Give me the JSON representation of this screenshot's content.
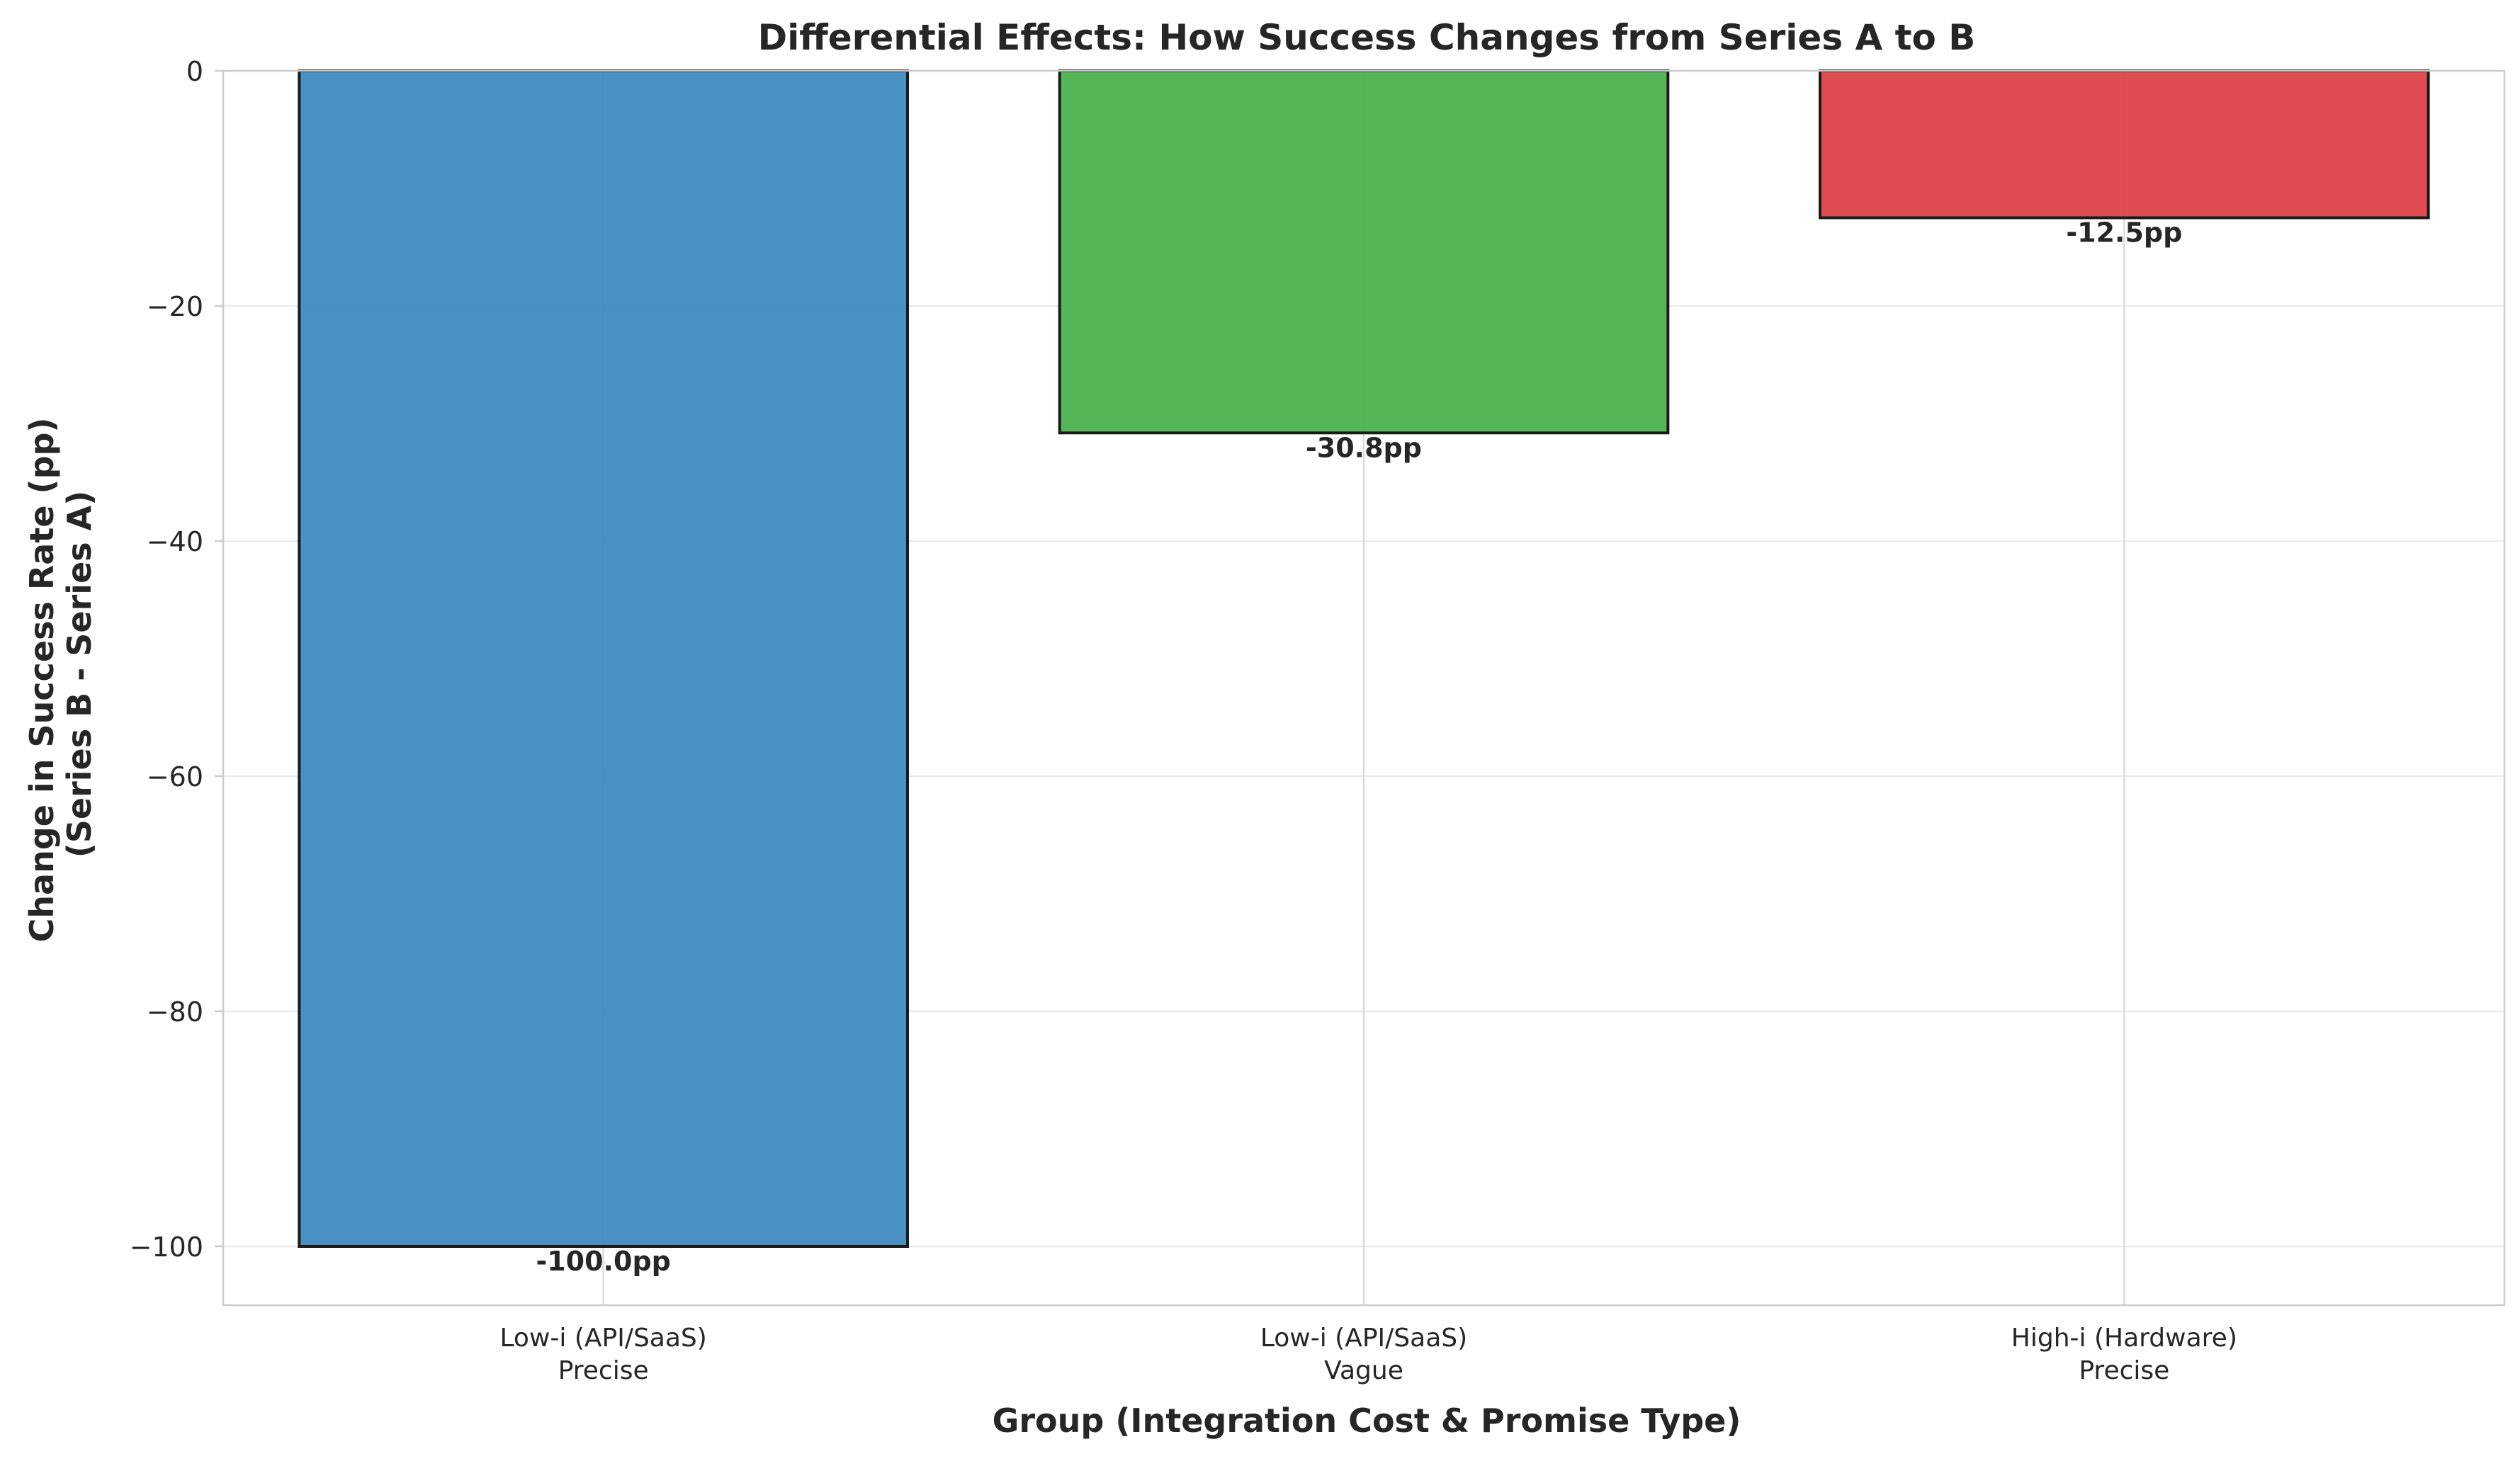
{
  "chart_data": {
    "type": "bar",
    "title": "Differential Effects: How Success Changes from Series A to B",
    "xlabel": "Group (Integration Cost & Promise Type)",
    "ylabel_lines": [
      "Change in Success Rate (pp)",
      "(Series B - Series A)"
    ],
    "categories": [
      [
        "Low-i (API/SaaS)",
        "Precise"
      ],
      [
        "Low-i (API/SaaS)",
        "Vague"
      ],
      [
        "High-i (Hardware)",
        "Precise"
      ]
    ],
    "values": [
      -100.0,
      -30.8,
      -12.5
    ],
    "value_labels": [
      "-100.0pp",
      "-30.8pp",
      "-12.5pp"
    ],
    "colors": [
      "#3a87c0",
      "#47b04a",
      "#dc3d42"
    ],
    "ylim": [
      -105,
      0
    ],
    "yticks": [
      0,
      -20,
      -40,
      -60,
      -80,
      -100
    ],
    "ytick_labels": [
      "0",
      "−20",
      "−40",
      "−60",
      "−80",
      "−100"
    ],
    "grid": true
  }
}
